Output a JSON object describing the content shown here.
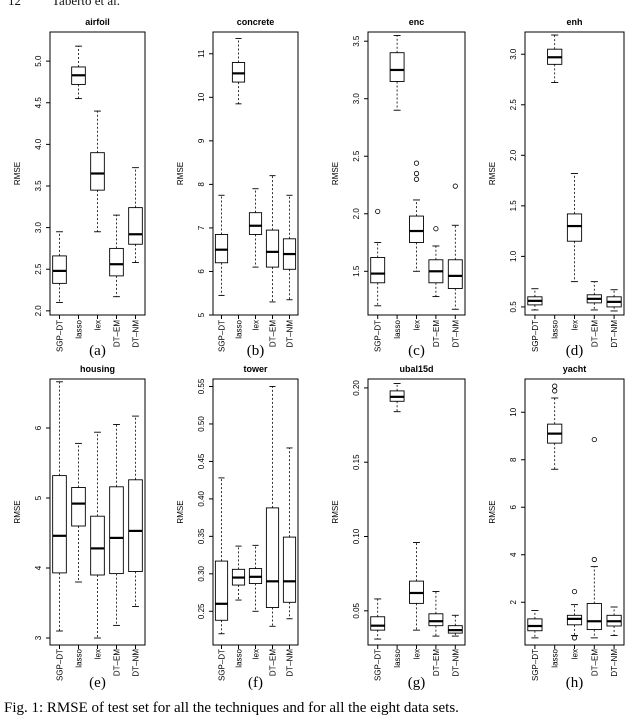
{
  "header": {
    "page_number": "12",
    "authors": "Taberto et al."
  },
  "caption": "Fig. 1: RMSE of test set for all the techniques and for all the eight data sets.",
  "ylabel": "RMSE",
  "chart_data": [
    {
      "type": "box",
      "title": "airfoil",
      "label": "(a)",
      "categories": [
        "SGP–DT",
        "lasso",
        "lex",
        "DT–EM",
        "DT–NM"
      ],
      "ylim": [
        1.95,
        5.35
      ],
      "yticks": [
        "2.0",
        "2.5",
        "3.0",
        "3.5",
        "4.0",
        "4.5",
        "5.0"
      ],
      "boxes": [
        {
          "min": 2.1,
          "q1": 2.33,
          "median": 2.48,
          "q3": 2.66,
          "max": 2.95,
          "outliers": []
        },
        {
          "min": 4.55,
          "q1": 4.72,
          "median": 4.83,
          "q3": 4.93,
          "max": 5.18,
          "outliers": []
        },
        {
          "min": 2.95,
          "q1": 3.45,
          "median": 3.65,
          "q3": 3.9,
          "max": 4.4,
          "outliers": []
        },
        {
          "min": 2.17,
          "q1": 2.42,
          "median": 2.56,
          "q3": 2.75,
          "max": 3.15,
          "outliers": []
        },
        {
          "min": 2.58,
          "q1": 2.8,
          "median": 2.92,
          "q3": 3.24,
          "max": 3.72,
          "outliers": []
        }
      ]
    },
    {
      "type": "box",
      "title": "concrete",
      "label": "(b)",
      "categories": [
        "SGP–DT",
        "lasso",
        "lex",
        "DT–EM",
        "DT–NM"
      ],
      "ylim": [
        5.0,
        11.5
      ],
      "yticks": [
        "5",
        "6",
        "7",
        "8",
        "9",
        "10",
        "11"
      ],
      "boxes": [
        {
          "min": 5.45,
          "q1": 6.2,
          "median": 6.5,
          "q3": 6.85,
          "max": 7.75,
          "outliers": []
        },
        {
          "min": 9.85,
          "q1": 10.35,
          "median": 10.55,
          "q3": 10.8,
          "max": 11.35,
          "outliers": []
        },
        {
          "min": 6.1,
          "q1": 6.85,
          "median": 7.05,
          "q3": 7.35,
          "max": 7.9,
          "outliers": []
        },
        {
          "min": 5.3,
          "q1": 6.1,
          "median": 6.45,
          "q3": 6.95,
          "max": 8.2,
          "outliers": []
        },
        {
          "min": 5.35,
          "q1": 6.05,
          "median": 6.4,
          "q3": 6.75,
          "max": 7.75,
          "outliers": []
        }
      ]
    },
    {
      "type": "box",
      "title": "enc",
      "label": "(c)",
      "categories": [
        "SGP–DT",
        "lasso",
        "lex",
        "DT–EM",
        "DT–NM"
      ],
      "ylim": [
        1.12,
        3.58
      ],
      "yticks": [
        "1.5",
        "2.0",
        "2.5",
        "3.0",
        "3.5"
      ],
      "boxes": [
        {
          "min": 1.2,
          "q1": 1.4,
          "median": 1.48,
          "q3": 1.62,
          "max": 1.75,
          "outliers": [
            2.02
          ]
        },
        {
          "min": 2.9,
          "q1": 3.15,
          "median": 3.25,
          "q3": 3.4,
          "max": 3.55,
          "outliers": []
        },
        {
          "min": 1.5,
          "q1": 1.75,
          "median": 1.85,
          "q3": 1.98,
          "max": 2.12,
          "outliers": [
            2.3,
            2.35,
            2.44
          ]
        },
        {
          "min": 1.28,
          "q1": 1.4,
          "median": 1.5,
          "q3": 1.6,
          "max": 1.72,
          "outliers": [
            1.87
          ]
        },
        {
          "min": 1.17,
          "q1": 1.35,
          "median": 1.46,
          "q3": 1.6,
          "max": 1.9,
          "outliers": [
            2.24
          ]
        }
      ]
    },
    {
      "type": "box",
      "title": "enh",
      "label": "(d)",
      "categories": [
        "SGP–DT",
        "lasso",
        "lex",
        "DT–EM",
        "DT–NM"
      ],
      "ylim": [
        0.42,
        3.22
      ],
      "yticks": [
        "0.5",
        "1.0",
        "1.5",
        "2.0",
        "2.5",
        "3.0"
      ],
      "boxes": [
        {
          "min": 0.47,
          "q1": 0.52,
          "median": 0.56,
          "q3": 0.6,
          "max": 0.68,
          "outliers": []
        },
        {
          "min": 2.72,
          "q1": 2.9,
          "median": 2.97,
          "q3": 3.05,
          "max": 3.19,
          "outliers": []
        },
        {
          "min": 0.75,
          "q1": 1.15,
          "median": 1.3,
          "q3": 1.42,
          "max": 1.82,
          "outliers": []
        },
        {
          "min": 0.47,
          "q1": 0.54,
          "median": 0.58,
          "q3": 0.62,
          "max": 0.75,
          "outliers": []
        },
        {
          "min": 0.46,
          "q1": 0.5,
          "median": 0.55,
          "q3": 0.6,
          "max": 0.67,
          "outliers": []
        }
      ]
    },
    {
      "type": "box",
      "title": "housing",
      "label": "(e)",
      "categories": [
        "SGP–DT",
        "lasso",
        "lex",
        "DT–EM",
        "DT–NM"
      ],
      "ylim": [
        2.9,
        6.7
      ],
      "yticks": [
        "3",
        "4",
        "5",
        "6"
      ],
      "boxes": [
        {
          "min": 3.1,
          "q1": 3.93,
          "median": 4.46,
          "q3": 5.32,
          "max": 6.66,
          "outliers": []
        },
        {
          "min": 3.8,
          "q1": 4.6,
          "median": 4.92,
          "q3": 5.15,
          "max": 5.78,
          "outliers": []
        },
        {
          "min": 3.0,
          "q1": 3.9,
          "median": 4.28,
          "q3": 4.74,
          "max": 5.94,
          "outliers": []
        },
        {
          "min": 3.18,
          "q1": 3.92,
          "median": 4.43,
          "q3": 5.16,
          "max": 6.05,
          "outliers": []
        },
        {
          "min": 3.45,
          "q1": 3.95,
          "median": 4.53,
          "q3": 5.26,
          "max": 6.17,
          "outliers": []
        }
      ]
    },
    {
      "type": "box",
      "title": "tower",
      "label": "(f)",
      "categories": [
        "SGP–DT",
        "lasso",
        "lex",
        "DT–EM",
        "DT–NM"
      ],
      "ylim": [
        0.205,
        0.56
      ],
      "yticks": [
        "0.25",
        "0.30",
        "0.35",
        "0.40",
        "0.45",
        "0.50",
        "0.55"
      ],
      "boxes": [
        {
          "min": 0.22,
          "q1": 0.238,
          "median": 0.26,
          "q3": 0.317,
          "max": 0.428,
          "outliers": []
        },
        {
          "min": 0.265,
          "q1": 0.285,
          "median": 0.295,
          "q3": 0.306,
          "max": 0.337,
          "outliers": []
        },
        {
          "min": 0.25,
          "q1": 0.287,
          "median": 0.296,
          "q3": 0.307,
          "max": 0.338,
          "outliers": []
        },
        {
          "min": 0.23,
          "q1": 0.255,
          "median": 0.29,
          "q3": 0.388,
          "max": 0.55,
          "outliers": []
        },
        {
          "min": 0.24,
          "q1": 0.262,
          "median": 0.29,
          "q3": 0.349,
          "max": 0.468,
          "outliers": []
        }
      ]
    },
    {
      "type": "box",
      "title": "ubal15d",
      "label": "(g)",
      "categories": [
        "SGP–DT",
        "lasso",
        "lex",
        "DT–EM",
        "DT–NM"
      ],
      "ylim": [
        0.027,
        0.206
      ],
      "yticks": [
        "0.05",
        "0.10",
        "0.15",
        "0.20"
      ],
      "boxes": [
        {
          "min": 0.031,
          "q1": 0.037,
          "median": 0.04,
          "q3": 0.046,
          "max": 0.058,
          "outliers": []
        },
        {
          "min": 0.184,
          "q1": 0.191,
          "median": 0.194,
          "q3": 0.198,
          "max": 0.203,
          "outliers": []
        },
        {
          "min": 0.037,
          "q1": 0.055,
          "median": 0.062,
          "q3": 0.07,
          "max": 0.096,
          "outliers": []
        },
        {
          "min": 0.033,
          "q1": 0.04,
          "median": 0.043,
          "q3": 0.048,
          "max": 0.063,
          "outliers": []
        },
        {
          "min": 0.033,
          "q1": 0.035,
          "median": 0.037,
          "q3": 0.04,
          "max": 0.047,
          "outliers": []
        }
      ]
    },
    {
      "type": "box",
      "title": "yacht",
      "label": "(h)",
      "categories": [
        "SGP–DT",
        "lasso",
        "lex",
        "DT–EM",
        "DT–NM"
      ],
      "ylim": [
        0.2,
        11.4
      ],
      "yticks": [
        "2",
        "4",
        "6",
        "8",
        "10"
      ],
      "boxes": [
        {
          "min": 0.5,
          "q1": 0.8,
          "median": 1.0,
          "q3": 1.3,
          "max": 1.65,
          "outliers": []
        },
        {
          "min": 7.6,
          "q1": 8.7,
          "median": 9.1,
          "q3": 9.5,
          "max": 10.6,
          "outliers": [
            10.9,
            11.1
          ]
        },
        {
          "min": 0.6,
          "q1": 1.05,
          "median": 1.3,
          "q3": 1.45,
          "max": 1.9,
          "outliers": [
            2.45,
            0.5
          ]
        },
        {
          "min": 0.5,
          "q1": 0.85,
          "median": 1.2,
          "q3": 1.95,
          "max": 3.5,
          "outliers": [
            3.8,
            8.85
          ]
        },
        {
          "min": 0.6,
          "q1": 1.0,
          "median": 1.2,
          "q3": 1.45,
          "max": 1.8,
          "outliers": []
        }
      ]
    }
  ]
}
